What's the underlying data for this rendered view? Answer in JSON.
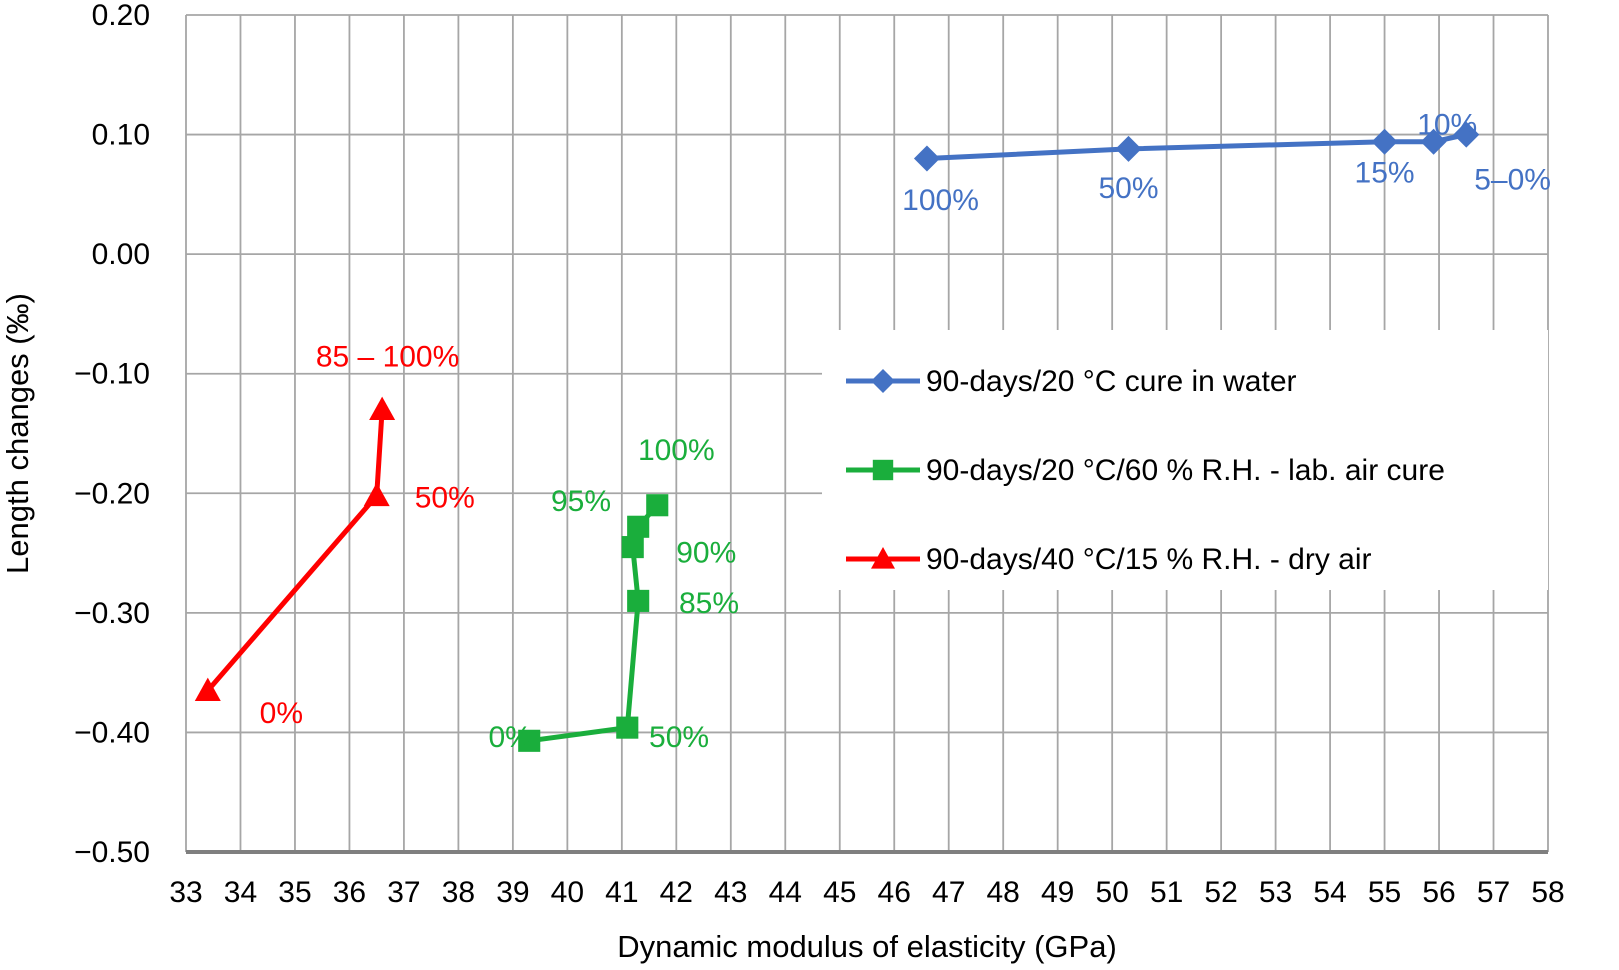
{
  "chart_data": {
    "type": "scatter",
    "xlabel": "Dynamic modulus of elasticity (GPa)",
    "ylabel": "Length changes (‰)",
    "xlim": [
      33,
      58
    ],
    "ylim": [
      -0.5,
      0.2
    ],
    "x_ticks": [
      "33",
      "34",
      "35",
      "36",
      "37",
      "38",
      "39",
      "40",
      "41",
      "42",
      "43",
      "44",
      "45",
      "46",
      "47",
      "48",
      "49",
      "50",
      "51",
      "52",
      "53",
      "54",
      "55",
      "56",
      "57",
      "58"
    ],
    "y_ticks": [
      "0.20",
      "0.10",
      "0.00",
      "−0.10",
      "−0.20",
      "−0.30",
      "−0.40",
      "−0.50"
    ],
    "grid": true,
    "legend_position": "right-middle",
    "series": [
      {
        "name": "90-days/20 °C cure in water",
        "color": "#4472c4",
        "marker": "diamond",
        "points": [
          {
            "x": 46.6,
            "y": 0.08
          },
          {
            "x": 50.3,
            "y": 0.088
          },
          {
            "x": 55.0,
            "y": 0.094
          },
          {
            "x": 55.9,
            "y": 0.094
          },
          {
            "x": 56.5,
            "y": 0.1
          }
        ],
        "labels": [
          {
            "text": "100%",
            "x": 46.85,
            "y": 0.037
          },
          {
            "text": "50%",
            "x": 50.3,
            "y": 0.047
          },
          {
            "text": "15%",
            "x": 55.0,
            "y": 0.06
          },
          {
            "text": "10%",
            "x": 56.15,
            "y": 0.1
          },
          {
            "text": "5–0%",
            "x": 57.35,
            "y": 0.054
          }
        ]
      },
      {
        "name": "90-days/20 °C/60 % R.H. - lab. air cure",
        "color": "#1aae3c",
        "marker": "square",
        "points": [
          {
            "x": 39.3,
            "y": -0.407
          },
          {
            "x": 41.1,
            "y": -0.396
          },
          {
            "x": 41.3,
            "y": -0.29
          },
          {
            "x": 41.2,
            "y": -0.245
          },
          {
            "x": 41.3,
            "y": -0.228
          },
          {
            "x": 41.65,
            "y": -0.21
          }
        ],
        "labels": [
          {
            "text": "0%",
            "x": 38.95,
            "y": -0.412
          },
          {
            "text": "50%",
            "x": 42.05,
            "y": -0.412
          },
          {
            "text": "85%",
            "x": 42.6,
            "y": -0.3
          },
          {
            "text": "90%",
            "x": 42.55,
            "y": -0.258
          },
          {
            "text": "95%",
            "x": 40.25,
            "y": -0.215
          },
          {
            "text": "100%",
            "x": 42.0,
            "y": -0.172
          }
        ]
      },
      {
        "name": "90-days/40 °C/15 % R.H. - dry air",
        "color": "#ff0000",
        "marker": "triangle",
        "points": [
          {
            "x": 33.4,
            "y": -0.365
          },
          {
            "x": 36.5,
            "y": -0.202
          },
          {
            "x": 36.6,
            "y": -0.13
          }
        ],
        "labels": [
          {
            "text": "0%",
            "x": 34.75,
            "y": -0.392
          },
          {
            "text": "50%",
            "x": 37.75,
            "y": -0.212
          },
          {
            "text": "85 – 100%",
            "x": 36.7,
            "y": -0.094
          }
        ]
      }
    ]
  }
}
